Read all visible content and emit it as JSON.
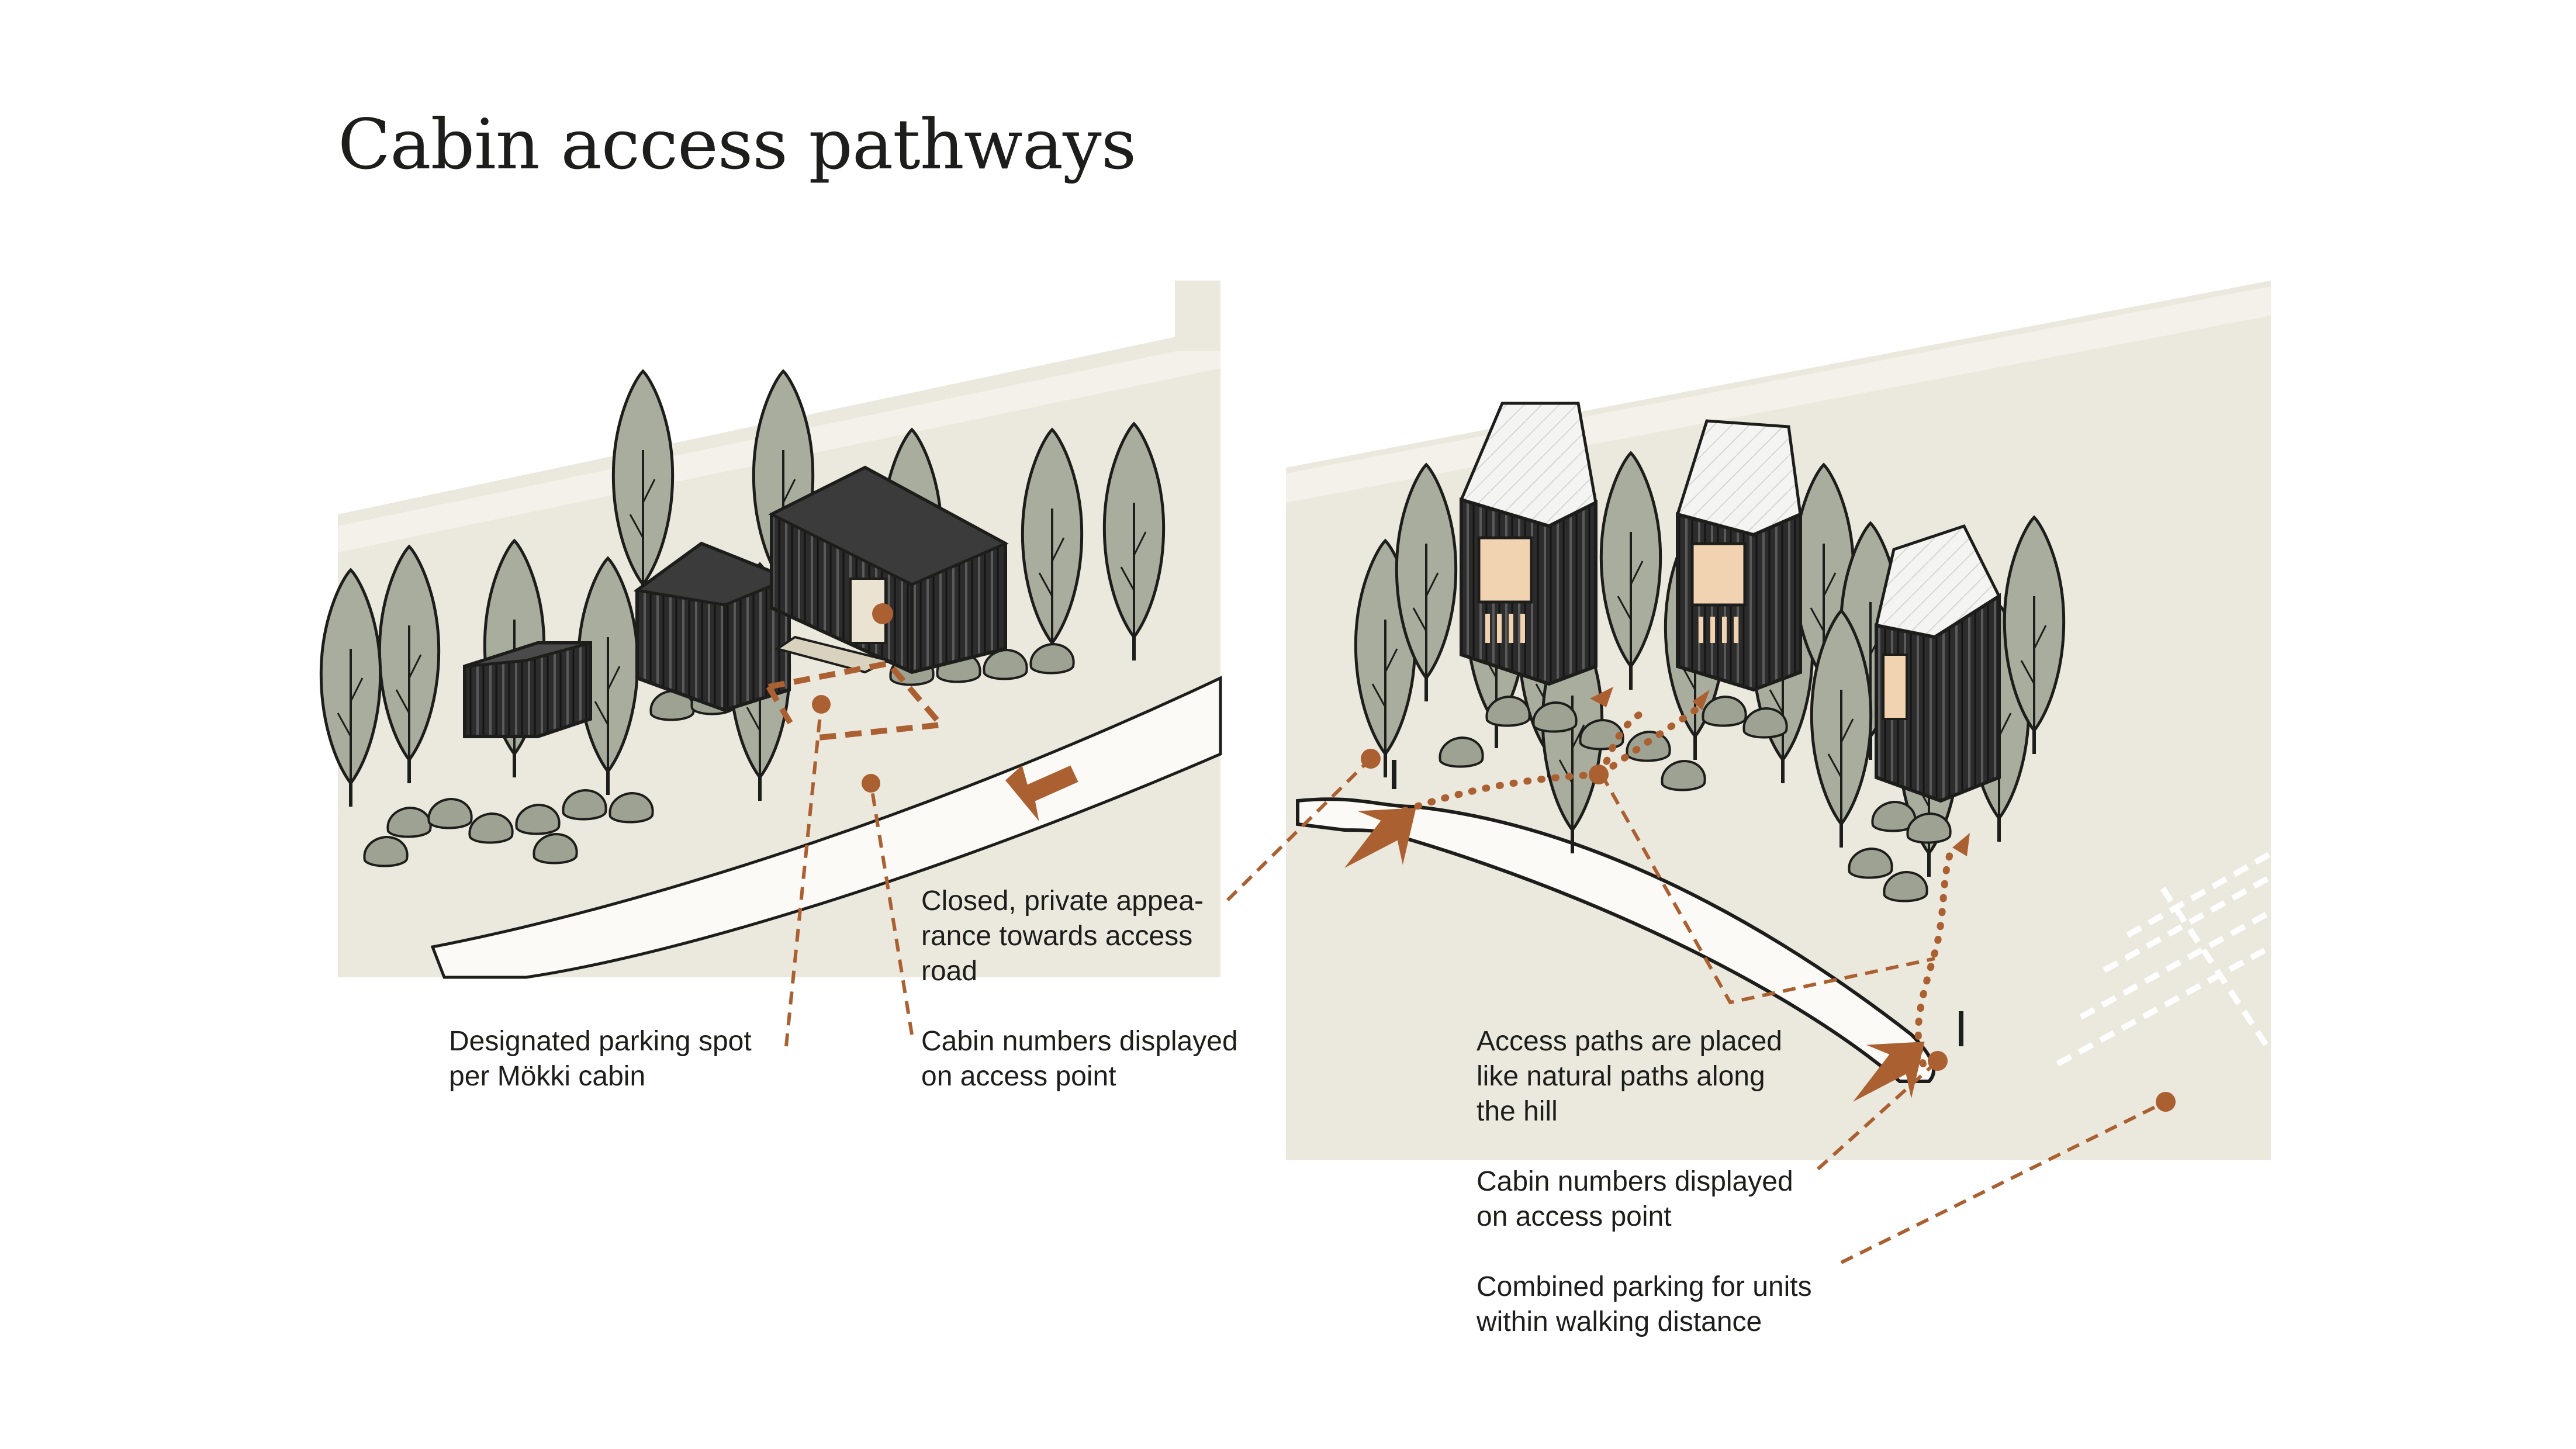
{
  "title": "Cabin access pathways",
  "colors": {
    "background": "#ffffff",
    "terrain": "#ebe8dd",
    "terrain_light": "#f3f1ea",
    "road": "#fbfaf6",
    "tree_fill": "#a9ad9d",
    "rock_fill": "#9da292",
    "cabin_dark": "#2c2c2c",
    "window_glow": "#f2d3b1",
    "accent": "#ab6032",
    "text": "#1d1d1b"
  },
  "annotations": {
    "left_closed_appearance": "Closed, private appea-\nrance towards access\nroad",
    "left_parking_spot": "Designated parking spot\nper Mökki cabin",
    "left_cabin_numbers": "Cabin numbers displayed\non access point",
    "right_access_paths": "Access paths are placed\nlike natural paths along\nthe hill",
    "right_cabin_numbers": "Cabin numbers displayed\non access point",
    "right_combined_parking": "Combined parking for units\nwithin walking distance"
  }
}
